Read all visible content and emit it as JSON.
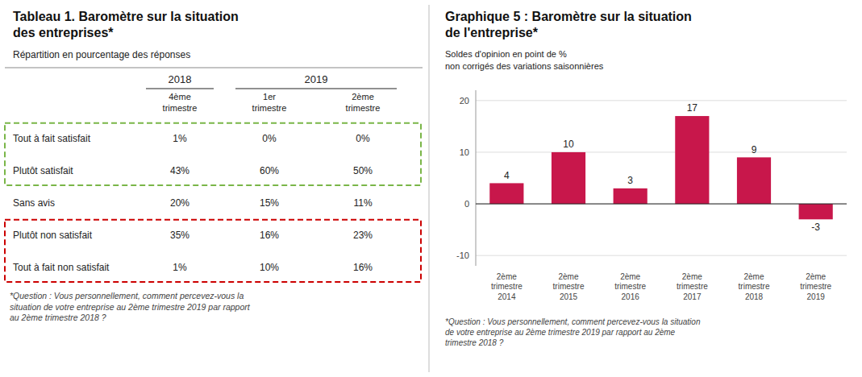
{
  "chart_data": [
    {
      "type": "table",
      "title": "Tableau 1. Baromètre sur la situation\ndes entreprises*",
      "subtitle": "Répartition en pourcentage des réponses",
      "column_groups": [
        {
          "name": "2018",
          "columns": [
            "4ème\ntrimestre"
          ]
        },
        {
          "name": "2019",
          "columns": [
            "1er\ntrimestre",
            "2ème\ntrimestre"
          ]
        }
      ],
      "categories": [
        "Tout à fait satisfait",
        "Plutôt satisfait",
        "Sans avis",
        "Plutôt non satisfait",
        "Tout à fait non satisfait"
      ],
      "values": [
        [
          1,
          0,
          0
        ],
        [
          43,
          60,
          50
        ],
        [
          20,
          15,
          11
        ],
        [
          35,
          16,
          23
        ],
        [
          1,
          10,
          16
        ]
      ],
      "value_labels": [
        [
          "1%",
          "0%",
          "0%"
        ],
        [
          "43%",
          "60%",
          "50%"
        ],
        [
          "20%",
          "15%",
          "11%"
        ],
        [
          "35%",
          "16%",
          "23%"
        ],
        [
          "1%",
          "10%",
          "16%"
        ]
      ],
      "highlights": [
        {
          "rows": [
            0,
            1
          ],
          "color": "#7ab648"
        },
        {
          "rows": [
            3,
            4
          ],
          "color": "#cc0000"
        }
      ],
      "footnote": "*Question : Vous personnellement, comment percevez-vous la\nsituation de votre entreprise au 2ème trimestre 2019 par rapport\nau 2ème trimestre 2018 ?"
    },
    {
      "type": "bar",
      "title": "Graphique 5 : Baromètre sur la situation\nde l'entreprise*",
      "subtitle": "Soldes d'opinion en point de %\nnon corrigés des variations saisonnières",
      "categories": [
        "2ème\ntrimestre\n2014",
        "2ème\ntrimestre\n2015",
        "2ème\ntrimestre\n2016",
        "2ème\ntrimestre\n2017",
        "2ème\ntrimestre\n2018",
        "2ème\ntrimestre\n2019"
      ],
      "values": [
        4,
        10,
        3,
        17,
        9,
        -3
      ],
      "color": "#C8174B",
      "ylim": [
        -12,
        22
      ],
      "yticks": [
        -10,
        0,
        10,
        20
      ],
      "grid": true,
      "data_labels": true,
      "footnote": "*Question : Vous personnellement,  comment percevez-vous  la situation\nde votre entreprise au 2ème trimestre 2019 par rapport au 2ème\ntrimestre 2018 ?"
    }
  ]
}
